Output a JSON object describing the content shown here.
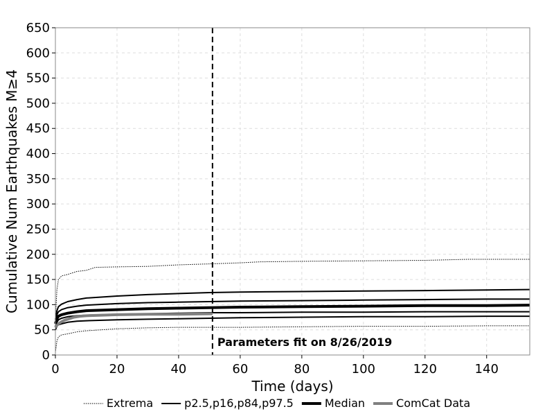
{
  "chart_data": {
    "type": "line",
    "title": "",
    "xlabel": "Time (days)",
    "ylabel": "Cumulative Num Earthquakes M≥4",
    "xlim": [
      0,
      154
    ],
    "ylim": [
      0,
      650
    ],
    "x_ticks": [
      0,
      20,
      40,
      60,
      80,
      100,
      120,
      140
    ],
    "y_ticks": [
      0,
      50,
      100,
      150,
      200,
      250,
      300,
      350,
      400,
      450,
      500,
      550,
      600,
      650
    ],
    "grid": true,
    "vertical_line": {
      "x": 51,
      "style": "dashed",
      "label": "Parameters fit on 8/26/2019"
    },
    "legend": {
      "placement": "bottom",
      "entries": [
        {
          "name": "Extrema",
          "style": "dotted-thin",
          "color": "#000000"
        },
        {
          "name": "p2.5,p16,p84,p97.5",
          "style": "solid",
          "color": "#000000"
        },
        {
          "name": "Median",
          "style": "solid-thick",
          "color": "#000000"
        },
        {
          "name": "ComCat Data",
          "style": "solid-thick",
          "color": "#808080"
        }
      ]
    },
    "series": [
      {
        "name": "Extrema (max)",
        "group": "Extrema",
        "x": [
          0,
          0.5,
          1,
          2,
          4,
          7,
          10,
          13,
          20,
          30,
          40,
          50,
          60,
          66,
          80,
          100,
          120,
          134,
          154
        ],
        "y": [
          70,
          130,
          150,
          157,
          160,
          166,
          168,
          174,
          175,
          176,
          179,
          181,
          183,
          185,
          186,
          187,
          188,
          190,
          190
        ]
      },
      {
        "name": "Extrema (min)",
        "group": "Extrema",
        "x": [
          0,
          0.5,
          1,
          2,
          4,
          7,
          10,
          20,
          30,
          40,
          50,
          60,
          80,
          100,
          120,
          140,
          154
        ],
        "y": [
          5,
          28,
          36,
          40,
          42,
          46,
          48,
          52,
          54,
          55,
          55,
          55,
          56,
          57,
          57,
          58,
          58
        ]
      },
      {
        "name": "p97.5",
        "group": "p2.5,p16,p84,p97.5",
        "x": [
          0,
          0.5,
          1,
          2,
          4,
          7,
          10,
          20,
          30,
          40,
          50,
          60,
          80,
          100,
          120,
          140,
          154
        ],
        "y": [
          70,
          88,
          96,
          101,
          106,
          110,
          113,
          117,
          120,
          122,
          124,
          125,
          126,
          127,
          128,
          129,
          130
        ]
      },
      {
        "name": "p84",
        "group": "p2.5,p16,p84,p97.5",
        "x": [
          0,
          0.5,
          1,
          2,
          4,
          7,
          10,
          20,
          30,
          40,
          50,
          60,
          80,
          100,
          120,
          140,
          154
        ],
        "y": [
          65,
          80,
          86,
          90,
          94,
          97,
          99,
          102,
          104,
          105,
          106,
          107,
          108,
          109,
          110,
          111,
          111
        ]
      },
      {
        "name": "p16",
        "group": "p2.5,p16,p84,p97.5",
        "x": [
          0,
          0.5,
          1,
          2,
          4,
          7,
          10,
          20,
          30,
          40,
          50,
          60,
          80,
          100,
          120,
          140,
          154
        ],
        "y": [
          58,
          65,
          70,
          73,
          76,
          78,
          79,
          81,
          82,
          83,
          84,
          84,
          85,
          85,
          86,
          86,
          86
        ]
      },
      {
        "name": "p2.5",
        "group": "p2.5,p16,p84,p97.5",
        "x": [
          0,
          0.5,
          1,
          2,
          4,
          7,
          10,
          20,
          30,
          40,
          50,
          60,
          80,
          100,
          120,
          140,
          154
        ],
        "y": [
          50,
          57,
          60,
          62,
          65,
          67,
          68,
          70,
          71,
          72,
          73,
          74,
          75,
          76,
          76,
          77,
          77
        ]
      },
      {
        "name": "Median",
        "group": "Median",
        "x": [
          0,
          0.5,
          1,
          2,
          4,
          7,
          10,
          20,
          30,
          40,
          50,
          60,
          80,
          100,
          120,
          140,
          154
        ],
        "y": [
          62,
          72,
          77,
          80,
          83,
          86,
          88,
          90,
          92,
          93,
          94,
          95,
          96,
          97,
          98,
          98,
          99
        ]
      },
      {
        "name": "ComCat Data",
        "group": "ComCat Data",
        "x": [
          0,
          0.3,
          1,
          2,
          3,
          4,
          5,
          6,
          8,
          10,
          15,
          20,
          30,
          40,
          51
        ],
        "y": [
          55,
          58,
          62,
          66,
          69,
          71,
          73,
          75,
          77,
          78,
          79,
          80,
          81,
          81,
          82
        ]
      }
    ]
  }
}
